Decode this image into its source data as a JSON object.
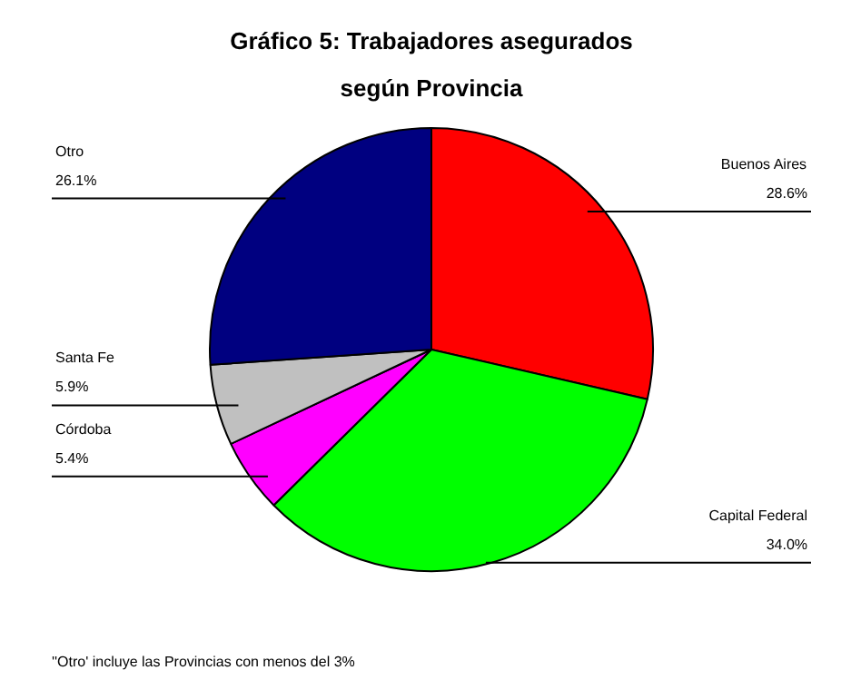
{
  "chart_data": {
    "type": "pie",
    "title": "Gráfico 5: Trabajadores asegurados según Provincia",
    "categories": [
      "Buenos Aires",
      "Capital Federal",
      "Córdoba",
      "Santa Fe",
      "Otro"
    ],
    "values": [
      28.6,
      34.0,
      5.4,
      5.9,
      26.1
    ],
    "colors": [
      "#ff0000",
      "#00ff00",
      "#ff00ff",
      "#c0c0c0",
      "#000080"
    ],
    "value_labels": [
      "28.6%",
      "34.0%",
      "5.4%",
      "5.9%",
      "26.1%"
    ],
    "annotations": [
      "''Otro' incluye las Provincias con menos del 3%"
    ]
  }
}
